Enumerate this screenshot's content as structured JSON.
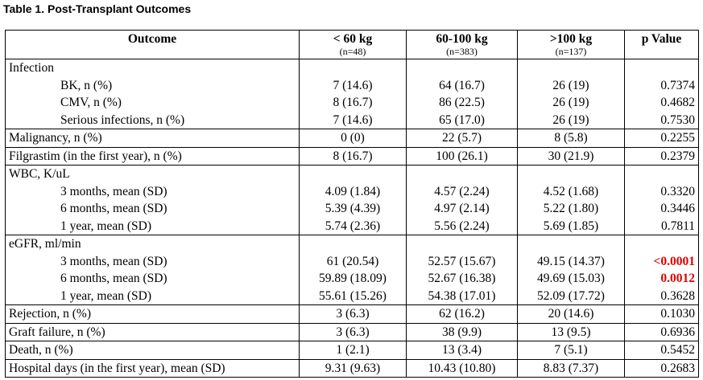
{
  "caption": "Table 1. Post-Transplant Outcomes",
  "headers": {
    "outcome": "Outcome",
    "col1": "< 60 kg",
    "col1_n": "(n=48)",
    "col2": "60-100 kg",
    "col2_n": "(n=383)",
    "col3": ">100 kg",
    "col3_n": "(n=137)",
    "pvalue": "p Value"
  },
  "rows": [
    {
      "label": "Infection",
      "c1": "",
      "c2": "",
      "c3": "",
      "p": ""
    },
    {
      "label": "BK, n (%)",
      "c1": "7 (14.6)",
      "c2": "64 (16.7)",
      "c3": "26 (19)",
      "p": "0.7374"
    },
    {
      "label": "CMV, n (%)",
      "c1": "8 (16.7)",
      "c2": "86 (22.5)",
      "c3": "26 (19)",
      "p": "0.4682"
    },
    {
      "label": "Serious infections, n (%)",
      "c1": "7 (14.6)",
      "c2": "65 (17.0)",
      "c3": "26 (19)",
      "p": "0.7530"
    },
    {
      "label": "Malignancy, n (%)",
      "c1": "0 (0)",
      "c2": "22 (5.7)",
      "c3": "8 (5.8)",
      "p": "0.2255"
    },
    {
      "label": "Filgrastim (in the first year), n (%)",
      "c1": "8 (16.7)",
      "c2": "100 (26.1)",
      "c3": "30 (21.9)",
      "p": "0.2379"
    },
    {
      "label": "WBC, K/uL",
      "c1": "",
      "c2": "",
      "c3": "",
      "p": ""
    },
    {
      "label": "3 months, mean (SD)",
      "c1": "4.09 (1.84)",
      "c2": "4.57 (2.24)",
      "c3": "4.52 (1.68)",
      "p": "0.3320"
    },
    {
      "label": "6 months, mean (SD)",
      "c1": "5.39 (4.39)",
      "c2": "4.97 (2.14)",
      "c3": "5.22 (1.80)",
      "p": "0.3446"
    },
    {
      "label": "1 year, mean (SD)",
      "c1": "5.74 (2.36)",
      "c2": "5.56 (2.24)",
      "c3": "5.69 (1.85)",
      "p": "0.7811"
    },
    {
      "label": "eGFR, ml/min",
      "c1": "",
      "c2": "",
      "c3": "",
      "p": ""
    },
    {
      "label": "3 months, mean (SD)",
      "c1": "61 (20.54)",
      "c2": "52.57 (15.67)",
      "c3": "49.15 (14.37)",
      "p": "<0.0001"
    },
    {
      "label": "6 months, mean (SD)",
      "c1": "59.89 (18.09)",
      "c2": "52.67 (16.38)",
      "c3": "49.69 (15.03)",
      "p": "0.0012"
    },
    {
      "label": "1 year, mean (SD)",
      "c1": "55.61 (15.26)",
      "c2": "54.38 (17.01)",
      "c3": "52.09 (17.72)",
      "p": "0.3628"
    },
    {
      "label": "Rejection, n (%)",
      "c1": "3 (6.3)",
      "c2": "62 (16.2)",
      "c3": "20 (14.6)",
      "p": "0.1030"
    },
    {
      "label": "Graft failure, n (%)",
      "c1": "3 (6.3)",
      "c2": "38 (9.9)",
      "c3": "13 (9.5)",
      "p": "0.6936"
    },
    {
      "label": "Death, n (%)",
      "c1": "1 (2.1)",
      "c2": "13 (3.4)",
      "c3": "7 (5.1)",
      "p": "0.5452"
    },
    {
      "label": "Hospital days (in the first year), mean (SD)",
      "c1": "9.31 (9.63)",
      "c2": "10.43 (10.80)",
      "c3": "8.83 (7.37)",
      "p": "0.2683"
    }
  ],
  "colors": {
    "significant": "#e00000"
  }
}
